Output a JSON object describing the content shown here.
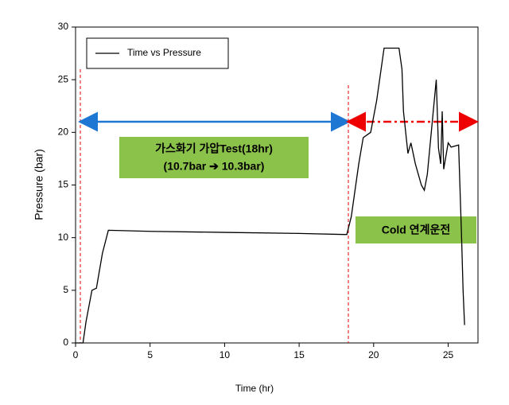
{
  "chart_data": {
    "type": "line",
    "x_label": "Time (hr)",
    "y_label": "Pressure (bar)",
    "x": [
      0,
      0.5,
      0.7,
      1.1,
      1.4,
      1.8,
      2.2,
      5,
      10,
      15,
      18,
      18.2,
      18.5,
      19,
      19.3,
      19.8,
      20.2,
      20.7,
      21.7,
      21.9,
      22,
      22.3,
      22.5,
      22.8,
      23.2,
      23.4,
      23.6,
      24,
      24.2,
      24.35,
      24.5,
      24.6,
      24.7,
      25,
      25.2,
      25.7,
      25.9,
      26,
      26.1
    ],
    "series": [
      {
        "name": "Time vs Pressure",
        "color": "#000000",
        "values": [
          0,
          0,
          2,
          5,
          5.2,
          8.5,
          10.7,
          10.6,
          10.5,
          10.4,
          10.3,
          10.3,
          12,
          17,
          19.5,
          20,
          23,
          28,
          28,
          26,
          22,
          18,
          19,
          17,
          15,
          14.5,
          16,
          22,
          25,
          18.5,
          17,
          22,
          16.5,
          19,
          18.6,
          18.8,
          10,
          5,
          1.7
        ]
      }
    ],
    "xlim": [
      0,
      27
    ],
    "ylim": [
      0,
      30
    ],
    "xticks": [
      0,
      5,
      10,
      15,
      20,
      25
    ],
    "yticks": [
      0,
      5,
      10,
      15,
      20,
      25,
      30
    ],
    "grid": false,
    "legend": "upper left",
    "annotations": [
      "가스화기 가압Test(18hr)",
      "(10.7bar ➔ 10.3bar)",
      "Cold 연계운전"
    ]
  }
}
